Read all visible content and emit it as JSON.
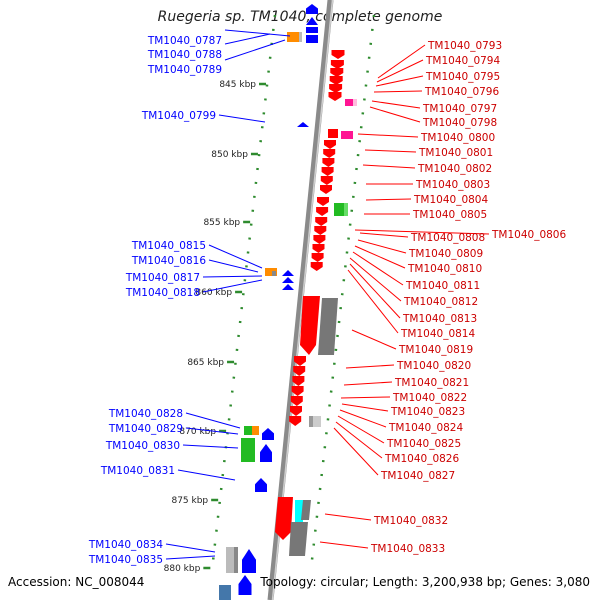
{
  "title": "Ruegeria sp. TM1040, complete genome",
  "footer": {
    "accession": "Accession: NC_008044",
    "info": "Topology: circular; Length: 3,200,938 bp; Genes: 3,080"
  },
  "colors": {
    "forward": "#0000ff",
    "reverse": "#ff0000",
    "orange": "#ff8c00",
    "magenta": "#ff1493",
    "green": "#22bb22",
    "cyan": "#00ffff",
    "grey": "#777777",
    "tick": "#2e8b2e"
  },
  "kbp_labels": [
    "845 kbp",
    "850 kbp",
    "855 kbp",
    "860 kbp",
    "865 kbp",
    "870 kbp",
    "875 kbp",
    "880 kbp"
  ],
  "left_genes": [
    "TM1040_0787",
    "TM1040_0788",
    "TM1040_0789",
    "TM1040_0799",
    "TM1040_0815",
    "TM1040_0816",
    "TM1040_0817",
    "TM1040_0818",
    "TM1040_0828",
    "TM1040_0829",
    "TM1040_0830",
    "TM1040_0831",
    "TM1040_0834",
    "TM1040_0835"
  ],
  "right_genes": [
    "TM1040_0793",
    "TM1040_0794",
    "TM1040_0795",
    "TM1040_0796",
    "TM1040_0797",
    "TM1040_0798",
    "TM1040_0800",
    "TM1040_0801",
    "TM1040_0802",
    "TM1040_0803",
    "TM1040_0804",
    "TM1040_0805",
    "TM1040_0806",
    "TM1040_0808",
    "TM1040_0809",
    "TM1040_0810",
    "TM1040_0811",
    "TM1040_0812",
    "TM1040_0813",
    "TM1040_0814",
    "TM1040_0819",
    "TM1040_0820",
    "TM1040_0821",
    "TM1040_0822",
    "TM1040_0823",
    "TM1040_0824",
    "TM1040_0825",
    "TM1040_0826",
    "TM1040_0827",
    "TM1040_0832",
    "TM1040_0833"
  ]
}
